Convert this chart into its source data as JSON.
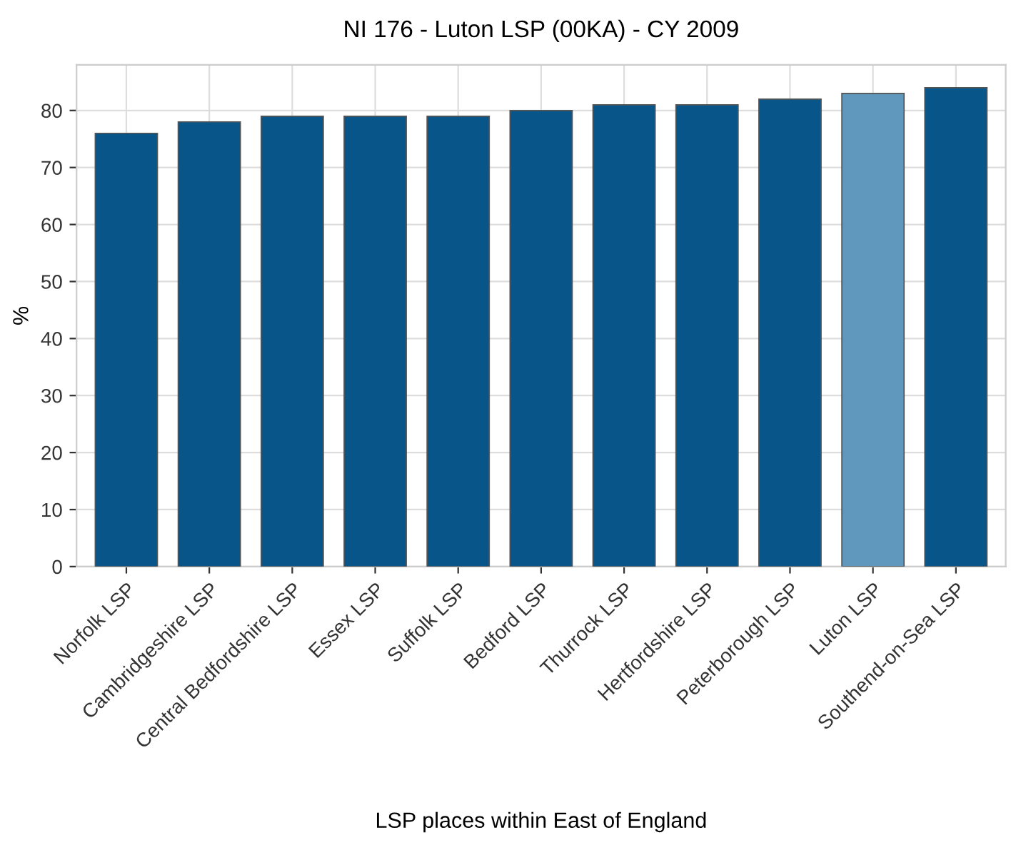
{
  "chart_data": {
    "type": "bar",
    "title": "NI 176 - Luton LSP (00KA) - CY 2009",
    "xlabel": "LSP places within East of England",
    "ylabel": "%",
    "categories": [
      "Norfolk LSP",
      "Cambridgeshire LSP",
      "Central Bedfordshire LSP",
      "Essex LSP",
      "Suffolk LSP",
      "Bedford LSP",
      "Thurrock LSP",
      "Hertfordshire LSP",
      "Peterborough LSP",
      "Luton LSP",
      "Southend-on-Sea LSP"
    ],
    "values": [
      76,
      78,
      79,
      79,
      79,
      80,
      81,
      81,
      82,
      83,
      84
    ],
    "colors": [
      "#08558a",
      "#08558a",
      "#08558a",
      "#08558a",
      "#08558a",
      "#08558a",
      "#08558a",
      "#08558a",
      "#08558a",
      "#5f97bd",
      "#08558a"
    ],
    "ylim": [
      0,
      88
    ],
    "yticks": [
      0,
      10,
      20,
      30,
      40,
      50,
      60,
      70,
      80
    ],
    "grid": true
  }
}
